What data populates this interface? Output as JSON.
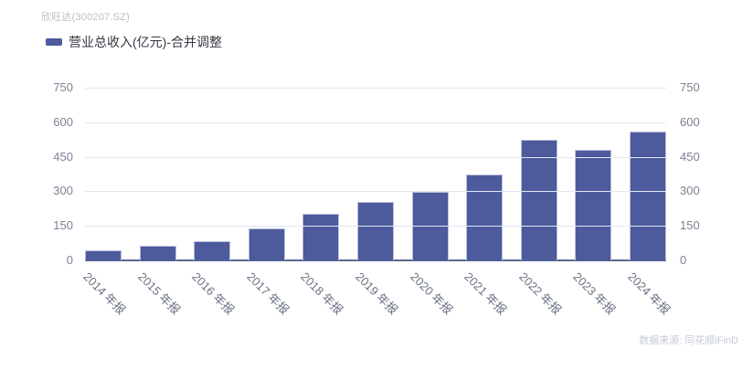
{
  "header": {
    "title": "欣旺达(300207.SZ)"
  },
  "legend": {
    "label": "营业总收入(亿元)-合并调整"
  },
  "footer": {
    "source": "数据来源: 同花顺iFinD"
  },
  "chart_data": {
    "type": "bar",
    "title": "欣旺达(300207.SZ)",
    "series_name": "营业总收入(亿元)-合并调整",
    "unit": "亿元",
    "categories": [
      "2014 年报",
      "2015 年报",
      "2016 年报",
      "2017 年报",
      "2018 年报",
      "2019 年报",
      "2020 年报",
      "2021 年报",
      "2022 年报",
      "2023 年报",
      "2024 年报"
    ],
    "values": [
      42,
      65,
      82,
      140,
      203,
      252,
      297,
      374,
      522,
      479,
      560
    ],
    "ylim": [
      0,
      750
    ],
    "yticks": [
      0,
      150,
      300,
      450,
      600,
      750
    ],
    "grid": true,
    "legend_position": "top-left",
    "y_axis_labels": "both-sides",
    "x_label_rotation_deg": 45,
    "bar_color": "#4d5a9b",
    "bar_border_color": "#b9bfdc",
    "grid_color": "#e2e8f2",
    "axis_line_color": "#5a678f"
  }
}
